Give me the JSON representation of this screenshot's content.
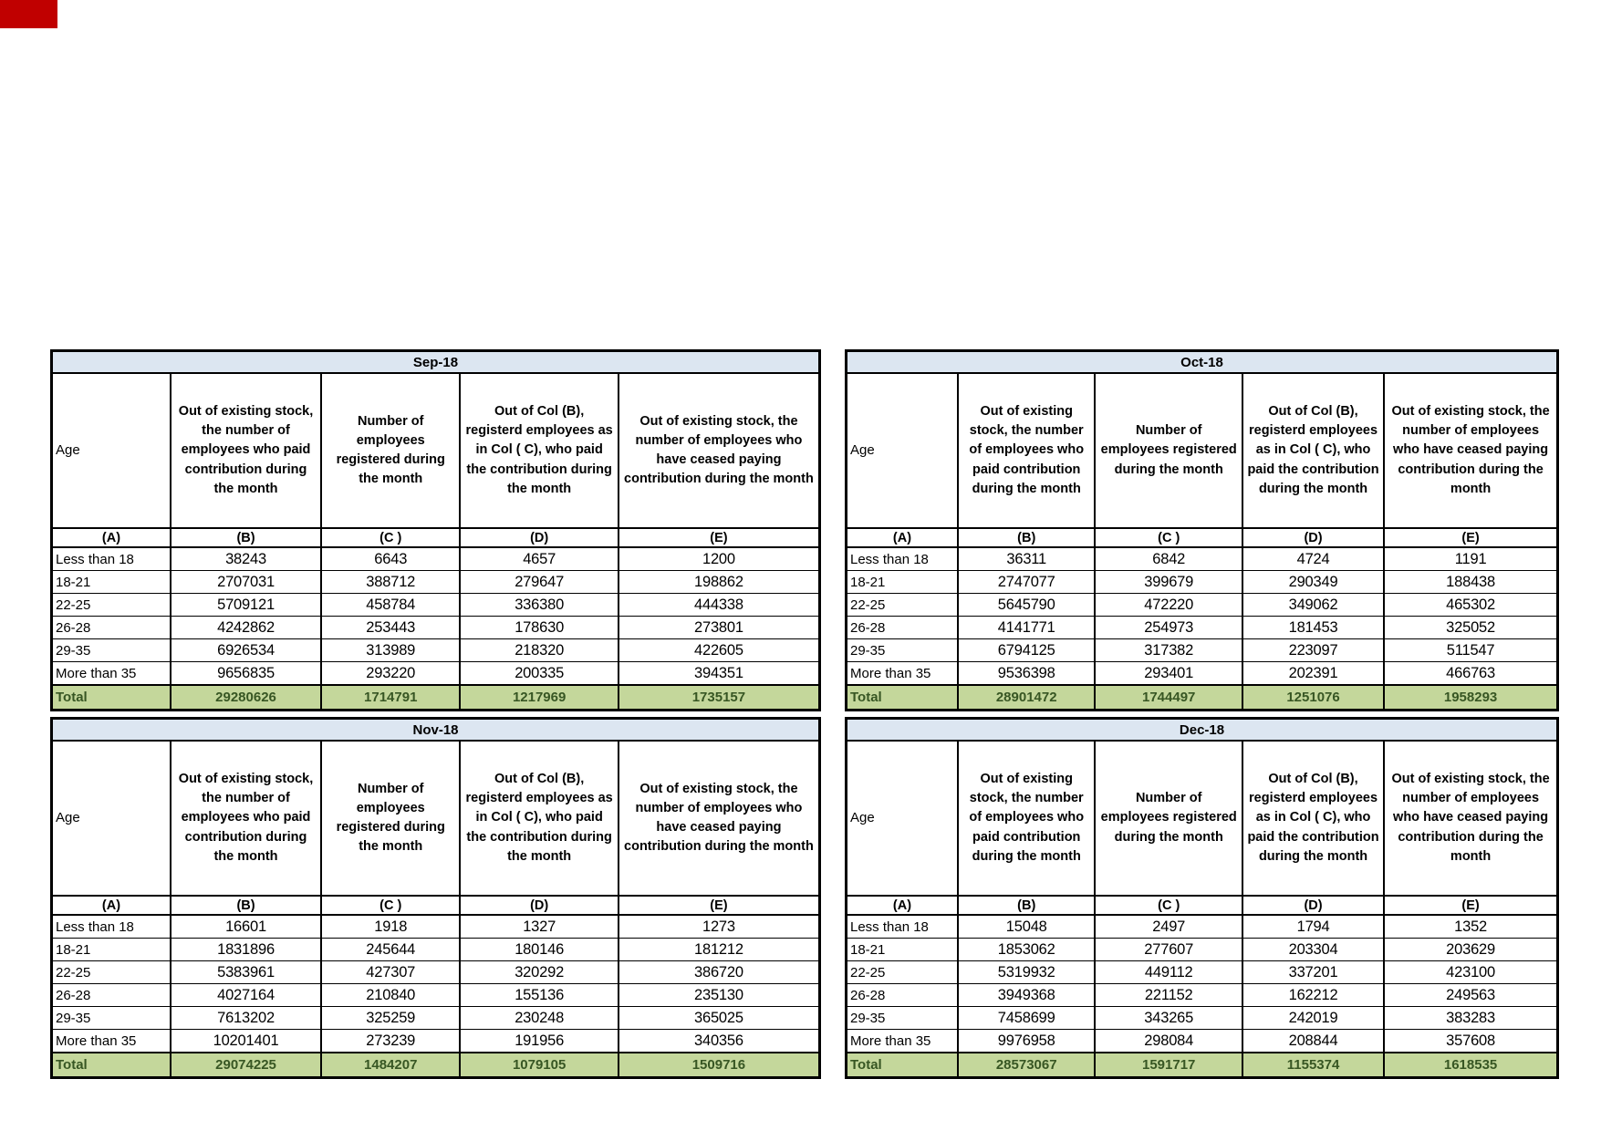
{
  "page": {
    "background": "#FFFFFF",
    "corner_marker_color": "#C00000"
  },
  "shared": {
    "age_label": "Age",
    "col_ids": [
      "(A)",
      "(B)",
      "(C )",
      "(D)",
      "(E)"
    ],
    "col_headers": {
      "b": "Out of existing stock, the number of employees who paid contribution during the month",
      "c": "Number of employees registered during the month",
      "d": "Out of Col (B), registerd employees as in Col ( C), who paid the contribution during the month",
      "e": "Out of existing stock, the number of employees  who have ceased paying contribution during the month"
    },
    "total_label": "Total",
    "colors": {
      "title_bg": "#DCE6F1",
      "total_bg": "#C4D79B",
      "total_text": "#375623",
      "border": "#000000"
    }
  },
  "tables": [
    {
      "title": "Sep-18",
      "rows": [
        [
          "Less than 18",
          "38243",
          "6643",
          "4657",
          "1200"
        ],
        [
          "18-21",
          "2707031",
          "388712",
          "279647",
          "198862"
        ],
        [
          "22-25",
          "5709121",
          "458784",
          "336380",
          "444338"
        ],
        [
          "26-28",
          "4242862",
          "253443",
          "178630",
          "273801"
        ],
        [
          "29-35",
          "6926534",
          "313989",
          "218320",
          "422605"
        ],
        [
          "More than 35",
          "9656835",
          "293220",
          "200335",
          "394351"
        ]
      ],
      "total": [
        "Total",
        "29280626",
        "1714791",
        "1217969",
        "1735157"
      ]
    },
    {
      "title": "Oct-18",
      "rows": [
        [
          "Less than 18",
          "36311",
          "6842",
          "4724",
          "1191"
        ],
        [
          "18-21",
          "2747077",
          "399679",
          "290349",
          "188438"
        ],
        [
          "22-25",
          "5645790",
          "472220",
          "349062",
          "465302"
        ],
        [
          "26-28",
          "4141771",
          "254973",
          "181453",
          "325052"
        ],
        [
          "29-35",
          "6794125",
          "317382",
          "223097",
          "511547"
        ],
        [
          "More than 35",
          "9536398",
          "293401",
          "202391",
          "466763"
        ]
      ],
      "total": [
        "Total",
        "28901472",
        "1744497",
        "1251076",
        "1958293"
      ]
    },
    {
      "title": "Nov-18",
      "rows": [
        [
          "Less than 18",
          "16601",
          "1918",
          "1327",
          "1273"
        ],
        [
          "18-21",
          "1831896",
          "245644",
          "180146",
          "181212"
        ],
        [
          "22-25",
          "5383961",
          "427307",
          "320292",
          "386720"
        ],
        [
          "26-28",
          "4027164",
          "210840",
          "155136",
          "235130"
        ],
        [
          "29-35",
          "7613202",
          "325259",
          "230248",
          "365025"
        ],
        [
          "More than 35",
          "10201401",
          "273239",
          "191956",
          "340356"
        ]
      ],
      "total": [
        "Total",
        "29074225",
        "1484207",
        "1079105",
        "1509716"
      ]
    },
    {
      "title": "Dec-18",
      "rows": [
        [
          "Less than 18",
          "15048",
          "2497",
          "1794",
          "1352"
        ],
        [
          "18-21",
          "1853062",
          "277607",
          "203304",
          "203629"
        ],
        [
          "22-25",
          "5319932",
          "449112",
          "337201",
          "423100"
        ],
        [
          "26-28",
          "3949368",
          "221152",
          "162212",
          "249563"
        ],
        [
          "29-35",
          "7458699",
          "343265",
          "242019",
          "383283"
        ],
        [
          "More than 35",
          "9976958",
          "298084",
          "208844",
          "357608"
        ]
      ],
      "total": [
        "Total",
        "28573067",
        "1591717",
        "1155374",
        "1618535"
      ]
    }
  ]
}
